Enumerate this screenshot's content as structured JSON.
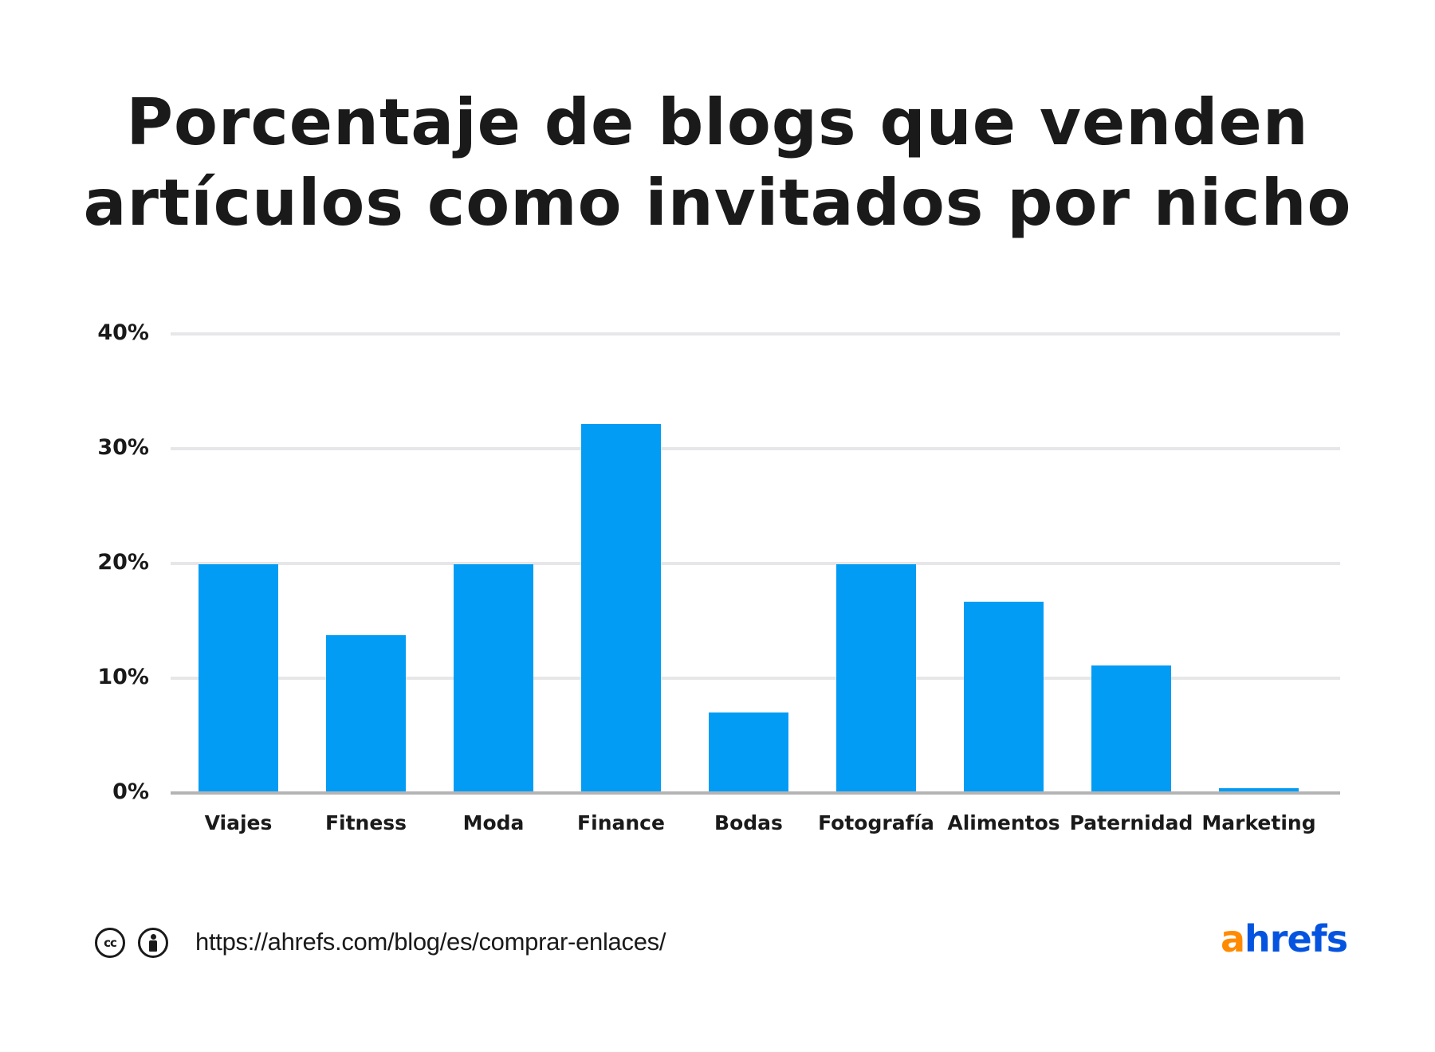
{
  "title": {
    "line1": "Porcentaje de blogs que venden",
    "line2": "artículos como invitados por nicho"
  },
  "colors": {
    "bar": "#029cf5",
    "grid": "#e7e7e9",
    "baseline": "#b4b4b4",
    "text": "#1a1a1a",
    "logo_orange": "#ff8a00",
    "logo_blue": "#0554e0"
  },
  "y_axis": {
    "ticks": [
      "40%",
      "30%",
      "20%",
      "10%",
      "0%"
    ]
  },
  "chart_data": {
    "type": "bar",
    "title": "Porcentaje de blogs que venden artículos como invitados por nicho",
    "xlabel": "",
    "ylabel": "",
    "categories": [
      "Viajes",
      "Fitness",
      "Moda",
      "Finance",
      "Bodas",
      "Fotografía",
      "Alimentos",
      "Paternidad",
      "Marketing"
    ],
    "values": [
      19.8,
      13.6,
      19.8,
      32.0,
      6.9,
      19.8,
      16.5,
      11.0,
      0.3
    ],
    "unit": "%",
    "ylim": [
      0,
      40
    ],
    "yticks": [
      0,
      10,
      20,
      30,
      40
    ],
    "ytick_labels": [
      "0%",
      "10%",
      "20%",
      "30%",
      "40%"
    ],
    "grid": true,
    "legend": null
  },
  "footer": {
    "license_icons": [
      "cc-icon",
      "by-attribution-icon"
    ],
    "cc_text": "cc",
    "url": "https://ahrefs.com/blog/es/comprar-enlaces/",
    "logo": {
      "a": "a",
      "rest": "hrefs"
    }
  }
}
